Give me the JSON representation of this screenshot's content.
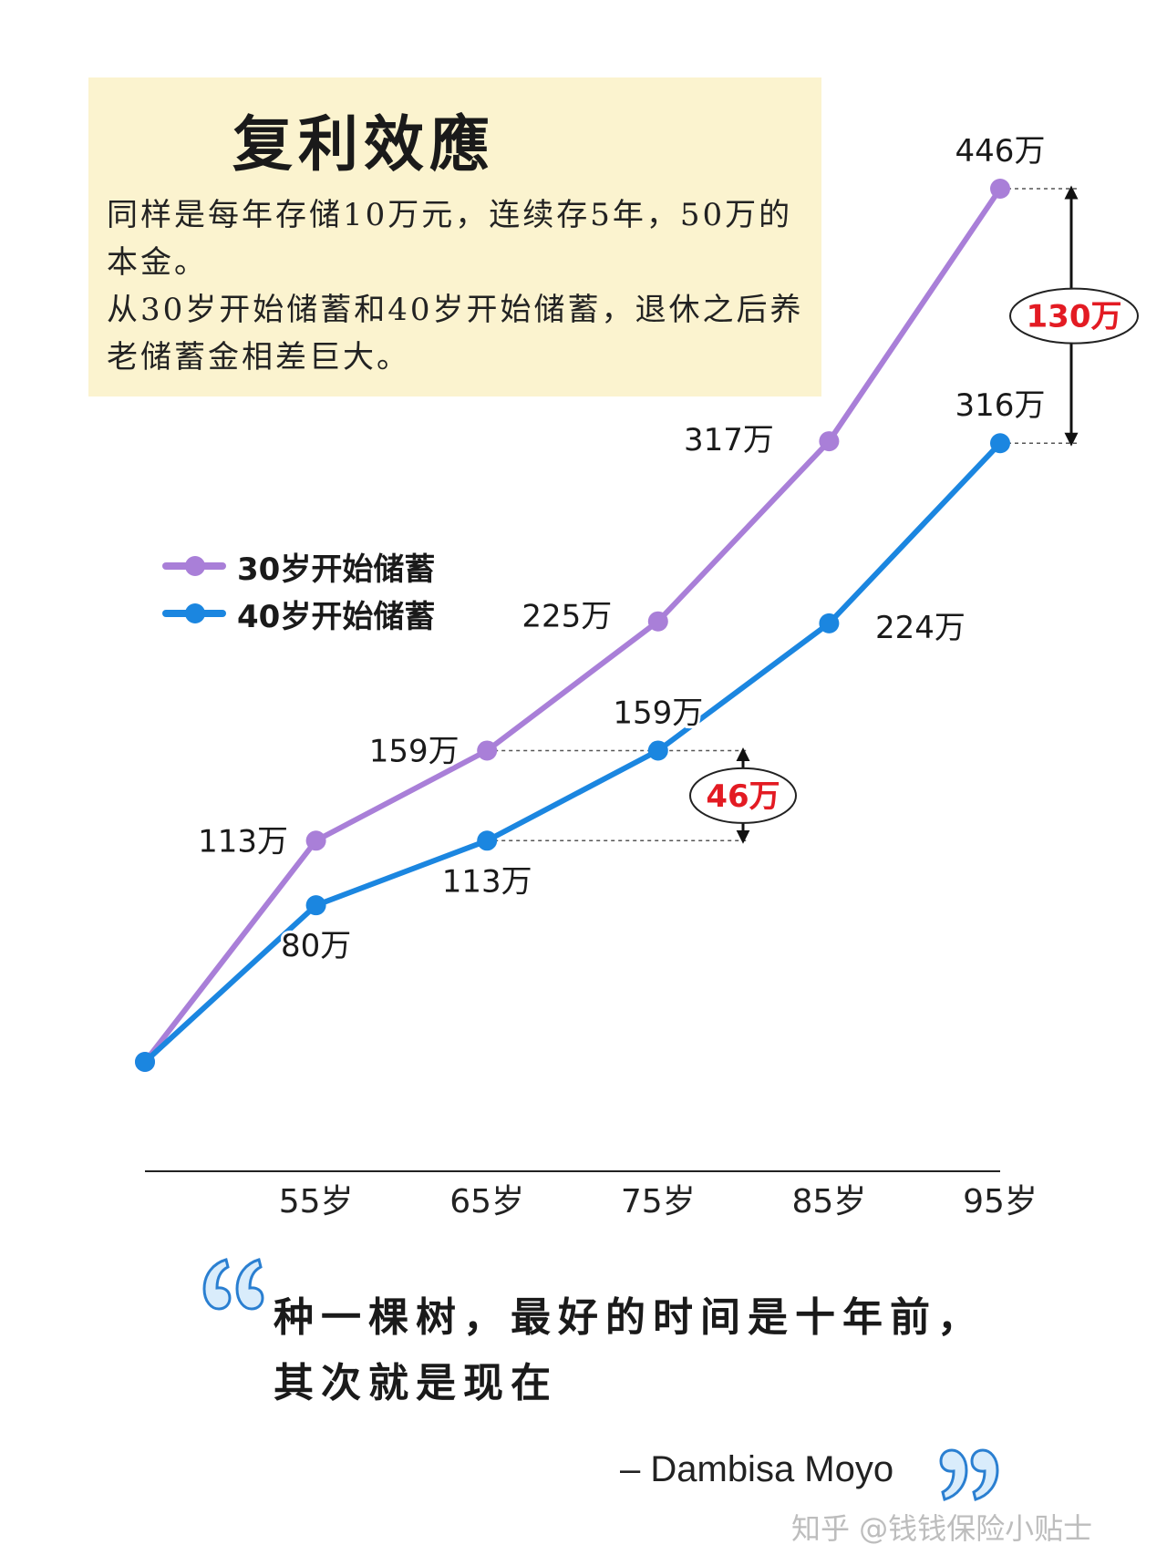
{
  "intro": {
    "title": "复利效應",
    "line1": "同样是每年存储10万元，连续存5年，50万的本金。",
    "line2": "从30岁开始储蓄和40岁开始储蓄，退休之后养老储蓄金相差巨大。"
  },
  "chart_data": {
    "type": "line",
    "categories": [
      "",
      "55岁",
      "65岁",
      "75岁",
      "85岁",
      "95岁"
    ],
    "series": [
      {
        "name": "30岁开始储蓄",
        "color": "#a97fd8",
        "values": [
          0,
          113,
          159,
          225,
          317,
          446
        ],
        "labels": [
          "",
          "113万",
          "159万",
          "225万",
          "317万",
          "446万"
        ]
      },
      {
        "name": "40岁开始储蓄",
        "color": "#1b86e0",
        "values": [
          0,
          80,
          113,
          159,
          224,
          316
        ],
        "labels": [
          "",
          "80万",
          "113万",
          "159万",
          "224万",
          "316万"
        ]
      }
    ],
    "annotations": [
      {
        "text": "46万",
        "from": 113,
        "to": 159,
        "color": "#e31b23"
      },
      {
        "text": "130万",
        "from": 316,
        "to": 446,
        "color": "#e31b23"
      }
    ],
    "ylim": [
      0,
      446
    ],
    "grid": false,
    "legend": "left"
  },
  "quote": {
    "line1": "种一棵树，最好的时间是十年前，",
    "line2": "其次就是现在",
    "author": "– Dambisa Moyo"
  },
  "watermark": "知乎 @钱钱保险小贴士"
}
